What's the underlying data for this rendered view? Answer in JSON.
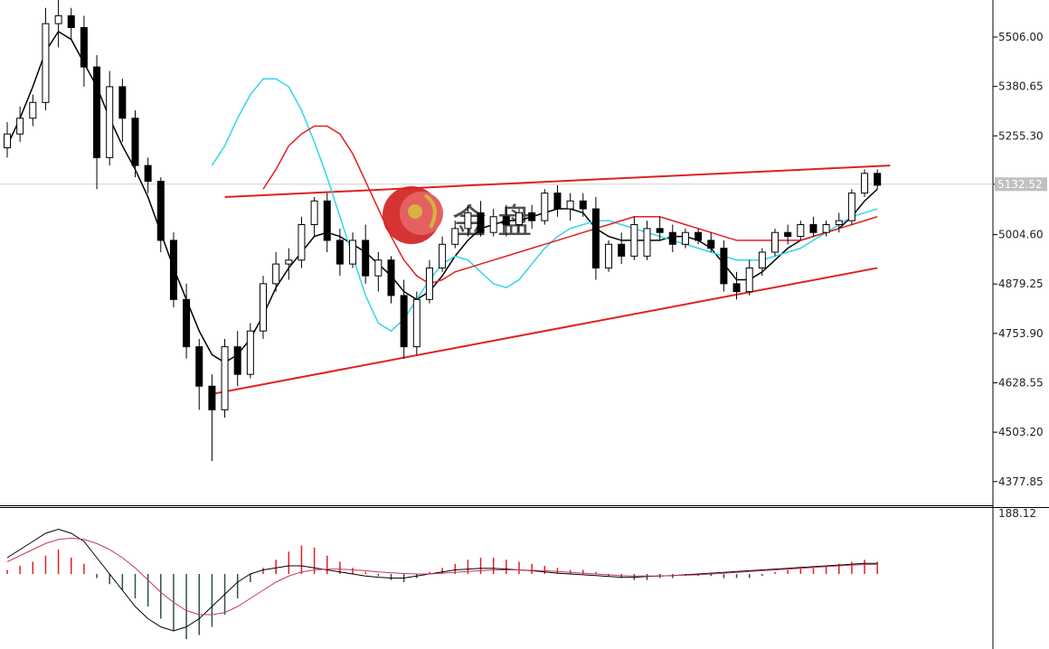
{
  "chart_data": {
    "type": "candlestick",
    "price_axis": {
      "ticks": [
        "5506.00",
        "5380.65",
        "5255.30",
        "5132.52",
        "5004.60",
        "4879.25",
        "4753.90",
        "4628.55",
        "4503.20",
        "4377.85"
      ],
      "tick_values": [
        5506.0,
        5380.65,
        5255.3,
        5132.52,
        5004.6,
        4879.25,
        4753.9,
        4628.55,
        4503.2,
        4377.85
      ],
      "current_price": "5132.52",
      "range": [
        4320,
        5600
      ]
    },
    "indicator_axis": {
      "ticks": [
        "188.12"
      ],
      "tick_values": [
        188.12
      ]
    },
    "colors": {
      "bull_candle": "#ffffff",
      "bear_candle": "#000000",
      "ma_fast": "#000000",
      "ma_mid": "#33d6e6",
      "ma_slow": "#e02020",
      "trendlines": "#e02020",
      "macd_pos": "#e02020",
      "macd_neg": "#2f4f4f",
      "signal_line": "#c8385a",
      "macd_line": "#000000",
      "current_price_line": "#c8c8c8",
      "grid": "#e0e0e0"
    },
    "grid": false,
    "candles": [
      [
        5225,
        5290,
        5200,
        5260
      ],
      [
        5260,
        5330,
        5240,
        5300
      ],
      [
        5300,
        5360,
        5280,
        5340
      ],
      [
        5340,
        5580,
        5320,
        5540
      ],
      [
        5540,
        5600,
        5480,
        5560
      ],
      [
        5560,
        5580,
        5500,
        5530
      ],
      [
        5530,
        5560,
        5380,
        5430
      ],
      [
        5430,
        5460,
        5120,
        5200
      ],
      [
        5200,
        5420,
        5180,
        5380
      ],
      [
        5380,
        5400,
        5240,
        5300
      ],
      [
        5300,
        5320,
        5150,
        5180
      ],
      [
        5180,
        5200,
        5110,
        5140
      ],
      [
        5140,
        5150,
        4960,
        4990
      ],
      [
        4990,
        5010,
        4820,
        4840
      ],
      [
        4840,
        4880,
        4690,
        4720
      ],
      [
        4720,
        4740,
        4560,
        4620
      ],
      [
        4620,
        4650,
        4430,
        4560
      ],
      [
        4560,
        4740,
        4540,
        4720
      ],
      [
        4720,
        4760,
        4620,
        4650
      ],
      [
        4650,
        4780,
        4640,
        4760
      ],
      [
        4760,
        4900,
        4740,
        4880
      ],
      [
        4880,
        4960,
        4860,
        4930
      ],
      [
        4930,
        4970,
        4890,
        4940
      ],
      [
        4940,
        5050,
        4920,
        5030
      ],
      [
        5030,
        5100,
        5000,
        5090
      ],
      [
        5090,
        5110,
        4960,
        4990
      ],
      [
        4990,
        5020,
        4900,
        4930
      ],
      [
        4930,
        5010,
        4920,
        4990
      ],
      [
        4990,
        5030,
        4880,
        4900
      ],
      [
        4900,
        4960,
        4860,
        4940
      ],
      [
        4940,
        4950,
        4830,
        4850
      ],
      [
        4850,
        4890,
        4690,
        4720
      ],
      [
        4720,
        4860,
        4700,
        4840
      ],
      [
        4840,
        4940,
        4830,
        4920
      ],
      [
        4920,
        5000,
        4910,
        4980
      ],
      [
        4980,
        5040,
        4970,
        5020
      ],
      [
        5020,
        5080,
        5000,
        5060
      ],
      [
        5060,
        5090,
        5000,
        5010
      ],
      [
        5010,
        5070,
        5000,
        5050
      ],
      [
        5050,
        5080,
        5000,
        5030
      ],
      [
        5030,
        5070,
        5010,
        5060
      ],
      [
        5060,
        5080,
        5020,
        5040
      ],
      [
        5040,
        5120,
        5030,
        5110
      ],
      [
        5110,
        5130,
        5050,
        5070
      ],
      [
        5070,
        5110,
        5040,
        5090
      ],
      [
        5090,
        5110,
        5050,
        5070
      ],
      [
        5070,
        5100,
        4890,
        4920
      ],
      [
        4920,
        4990,
        4910,
        4980
      ],
      [
        4980,
        5010,
        4930,
        4950
      ],
      [
        4950,
        5050,
        4940,
        5030
      ],
      [
        4950,
        5040,
        4940,
        5020
      ],
      [
        5020,
        5050,
        4990,
        5010
      ],
      [
        5010,
        5030,
        4960,
        4980
      ],
      [
        4980,
        5020,
        4970,
        5010
      ],
      [
        5010,
        5020,
        4980,
        4990
      ],
      [
        4990,
        5010,
        4960,
        4970
      ],
      [
        4970,
        4990,
        4860,
        4880
      ],
      [
        4880,
        4910,
        4840,
        4860
      ],
      [
        4860,
        4940,
        4850,
        4920
      ],
      [
        4920,
        4970,
        4900,
        4960
      ],
      [
        4960,
        5020,
        4950,
        5010
      ],
      [
        5010,
        5030,
        4980,
        5000
      ],
      [
        5000,
        5040,
        4990,
        5030
      ],
      [
        5030,
        5050,
        5000,
        5010
      ],
      [
        5010,
        5040,
        5000,
        5030
      ],
      [
        5030,
        5060,
        5010,
        5040
      ],
      [
        5040,
        5120,
        5030,
        5110
      ],
      [
        5110,
        5170,
        5100,
        5160
      ],
      [
        5160,
        5170,
        5120,
        5130
      ]
    ],
    "moving_averages": [
      {
        "values": [
          5230,
          5300,
          5380,
          5470,
          5520,
          5500,
          5440,
          5380,
          5300,
          5230,
          5170,
          5100,
          5010,
          4920,
          4840,
          4760,
          4700,
          4680,
          4700,
          4740,
          4800,
          4870,
          4920,
          4960,
          5000,
          5010,
          5000,
          4980,
          4960,
          4930,
          4900,
          4860,
          4840,
          4860,
          4900,
          4950,
          4990,
          5020,
          5030,
          5040,
          5040,
          5050,
          5060,
          5070,
          5070,
          5060,
          5020,
          5000,
          4990,
          4990,
          4990,
          4990,
          5000,
          5000,
          4990,
          4970,
          4930,
          4890,
          4890,
          4910,
          4940,
          4970,
          4990,
          5000,
          5010,
          5020,
          5050,
          5090,
          5120
        ]
      },
      {
        "values": [
          5180,
          5230,
          5300,
          5360,
          5400,
          5400,
          5380,
          5320,
          5240,
          5150,
          5050,
          4950,
          4850,
          4780,
          4760,
          4790,
          4840,
          4890,
          4930,
          4950,
          4940,
          4910,
          4880,
          4870,
          4890,
          4930,
          4970,
          5000,
          5020,
          5030,
          5040,
          5040,
          5030,
          5020,
          5010,
          5000,
          4990,
          4980,
          4970,
          4960,
          4950,
          4940,
          4940,
          4940,
          4950,
          4960,
          4970,
          4990,
          5010,
          5030,
          5050,
          5060,
          5070
        ]
      },
      {
        "values": [
          5120,
          5170,
          5230,
          5260,
          5280,
          5280,
          5260,
          5210,
          5140,
          5070,
          5000,
          4940,
          4900,
          4880,
          4890,
          4910,
          4920,
          4930,
          4940,
          4950,
          4960,
          4970,
          4980,
          4990,
          5000,
          5010,
          5020,
          5030,
          5040,
          5050,
          5050,
          5050,
          5040,
          5030,
          5020,
          5010,
          5000,
          4990,
          4990,
          4990,
          4990,
          4990,
          4990,
          5000,
          5010,
          5020,
          5030,
          5040,
          5050
        ]
      }
    ],
    "trendlines": [
      {
        "from": [
          16,
          4600
        ],
        "to": [
          68,
          4920
        ]
      },
      {
        "from": [
          17,
          5100
        ],
        "to": [
          69,
          5180
        ]
      }
    ],
    "macd": {
      "histogram": [
        10,
        20,
        30,
        45,
        60,
        40,
        25,
        -10,
        -25,
        -40,
        -60,
        -80,
        -110,
        -140,
        -160,
        -150,
        -130,
        -100,
        -60,
        -20,
        15,
        35,
        55,
        70,
        65,
        45,
        30,
        15,
        5,
        -5,
        -15,
        -20,
        -10,
        5,
        15,
        25,
        35,
        40,
        40,
        35,
        30,
        25,
        20,
        15,
        10,
        10,
        5,
        -5,
        -10,
        -15,
        -15,
        -10,
        -10,
        -5,
        -5,
        -5,
        -10,
        -10,
        -10,
        -5,
        5,
        10,
        15,
        15,
        20,
        25,
        30,
        35,
        30
      ],
      "macd_line": [
        40,
        60,
        80,
        100,
        110,
        100,
        80,
        40,
        0,
        -40,
        -80,
        -110,
        -130,
        -140,
        -130,
        -110,
        -80,
        -50,
        -20,
        0,
        10,
        15,
        20,
        20,
        15,
        10,
        5,
        0,
        -5,
        -8,
        -10,
        -10,
        -5,
        0,
        5,
        10,
        12,
        14,
        14,
        12,
        10,
        8,
        5,
        2,
        0,
        -2,
        -4,
        -6,
        -8,
        -8,
        -6,
        -5,
        -4,
        -2,
        0,
        2,
        4,
        6,
        8,
        10,
        12,
        14,
        16,
        18,
        20,
        22,
        24,
        26,
        26
      ],
      "signal_line": [
        30,
        45,
        60,
        75,
        85,
        88,
        85,
        75,
        60,
        40,
        15,
        -15,
        -45,
        -70,
        -90,
        -100,
        -100,
        -95,
        -80,
        -60,
        -40,
        -20,
        -5,
        5,
        10,
        12,
        12,
        10,
        8,
        5,
        3,
        1,
        0,
        0,
        2,
        4,
        6,
        8,
        10,
        10,
        10,
        9,
        8,
        6,
        4,
        2,
        0,
        -2,
        -4,
        -5,
        -5,
        -5,
        -4,
        -3,
        -2,
        0,
        2,
        4,
        6,
        8,
        10,
        12,
        14,
        16,
        18,
        20,
        22,
        23,
        24
      ]
    }
  },
  "watermark": {
    "logo": "金盘 logo",
    "text": "金 盘"
  }
}
